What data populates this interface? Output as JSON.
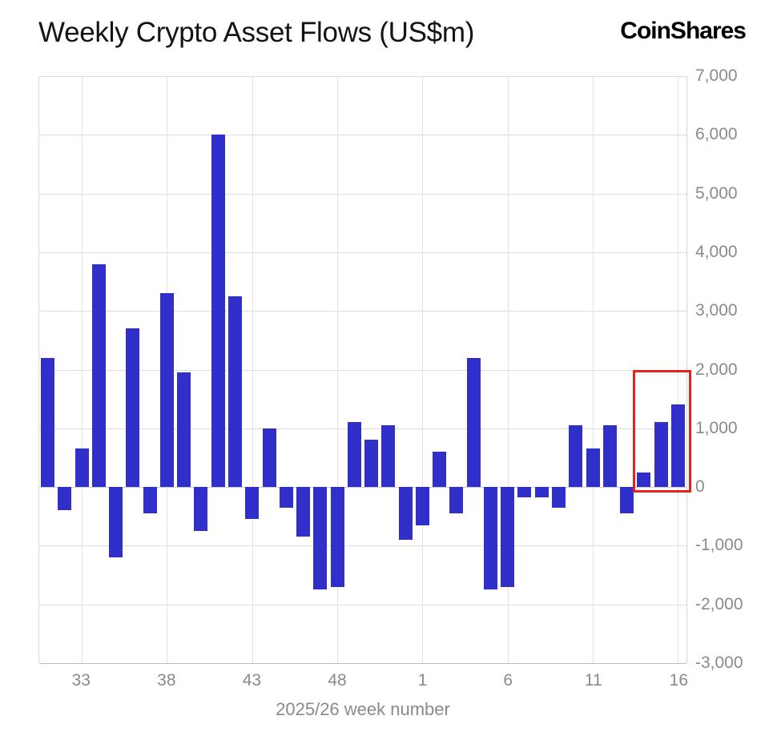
{
  "header": {
    "title": "Weekly Crypto Asset Flows (US$m)",
    "logo": "CoinShares"
  },
  "chart_data": {
    "type": "bar",
    "title": "Weekly Crypto Asset Flows (US$m)",
    "xlabel": "2025/26 week number",
    "ylabel": "",
    "ylim": [
      -3000,
      7000
    ],
    "grid": true,
    "bar_color": "#312fc9",
    "categories": [
      "31",
      "32",
      "33",
      "34",
      "35",
      "36",
      "37",
      "38",
      "39",
      "40",
      "41",
      "42",
      "43",
      "44",
      "45",
      "46",
      "47",
      "48",
      "49",
      "50",
      "51",
      "52",
      "1",
      "2",
      "3",
      "4",
      "5",
      "6",
      "7",
      "8",
      "9",
      "10",
      "11",
      "12",
      "13",
      "14",
      "15",
      "16"
    ],
    "values": [
      2200,
      -400,
      650,
      3800,
      -1200,
      2700,
      -450,
      3300,
      1950,
      -750,
      6000,
      3250,
      -550,
      1000,
      -350,
      -850,
      -1750,
      -1700,
      1100,
      800,
      1050,
      -900,
      -650,
      600,
      -450,
      2200,
      -1750,
      -1700,
      -170,
      -180,
      -350,
      1050,
      650,
      1050,
      -450,
      250,
      1100,
      1400
    ],
    "x_tick_labels": [
      "33",
      "38",
      "43",
      "48",
      "1",
      "6",
      "11",
      "16"
    ],
    "x_tick_indices": [
      2,
      7,
      12,
      17,
      22,
      27,
      32,
      37
    ],
    "y_ticks": [
      7000,
      6000,
      5000,
      4000,
      3000,
      2000,
      1000,
      0,
      -1000,
      -2000,
      -3000
    ],
    "y_tick_labels": [
      "7,000",
      "6,000",
      "5,000",
      "4,000",
      "3,000",
      "2,000",
      "1,000",
      "0",
      "-1,000",
      "-2,000",
      "-3,000"
    ],
    "highlight_box": {
      "color": "#e8211b",
      "start_index": 35,
      "end_index": 37,
      "start_week": "14",
      "end_week": "16",
      "top_value": 2000,
      "bottom_value": -100
    }
  }
}
